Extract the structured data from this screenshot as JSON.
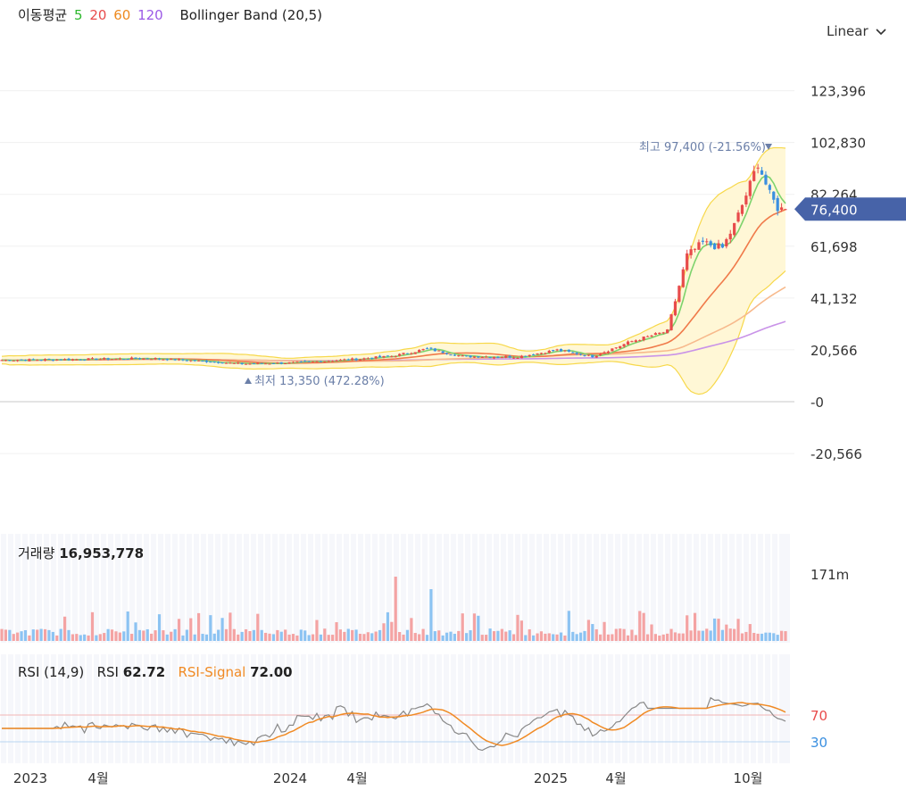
{
  "legend": {
    "ma_label": "이동평균",
    "ma_periods": [
      {
        "text": "5",
        "color": "#2eb82e"
      },
      {
        "text": "20",
        "color": "#e84b4b"
      },
      {
        "text": "60",
        "color": "#ee8a1f"
      },
      {
        "text": "120",
        "color": "#9b59e6"
      }
    ],
    "bollinger_label": "Bollinger Band (20,5)"
  },
  "scale_mode": "Linear",
  "colors": {
    "up": "#e84b4b",
    "down": "#3a8fe0",
    "band_fill": "#fff7d6",
    "band_line": "#f7d84a",
    "ma5": "#7dd36c",
    "ma20": "#f07a4a",
    "ma60": "#f7b98c",
    "ma120": "#c993e8",
    "current_badge": "#4763a8",
    "rsi_line": "#888888",
    "rsi_signal": "#f08a24"
  },
  "chart_data": {
    "type": "candlestick",
    "y_ticks": [
      "123,396",
      "102,830",
      "82,264",
      "61,698",
      "41,132",
      "20,566",
      "-0",
      "-20,566"
    ],
    "y_tick_values": [
      123396,
      102830,
      82264,
      61698,
      41132,
      20566,
      0,
      -20566
    ],
    "x_ticks": [
      "2023",
      "4월",
      "2024",
      "4월",
      "2025",
      "4월",
      "10월"
    ],
    "high_annotation": {
      "label": "최고",
      "value": "97,400 (-21.56%)"
    },
    "low_annotation": {
      "label": "최저",
      "value": "13,350 (472.28%)"
    },
    "current_price": "76,400",
    "volume": {
      "label": "거래량",
      "value": "16,953,778",
      "max_tick": "171m"
    },
    "rsi": {
      "label": "RSI (14,9)",
      "rsi_name": "RSI",
      "rsi_value": "62.72",
      "signal_name": "RSI-Signal",
      "signal_value": "72.00",
      "levels": [
        "70",
        "30"
      ]
    }
  }
}
